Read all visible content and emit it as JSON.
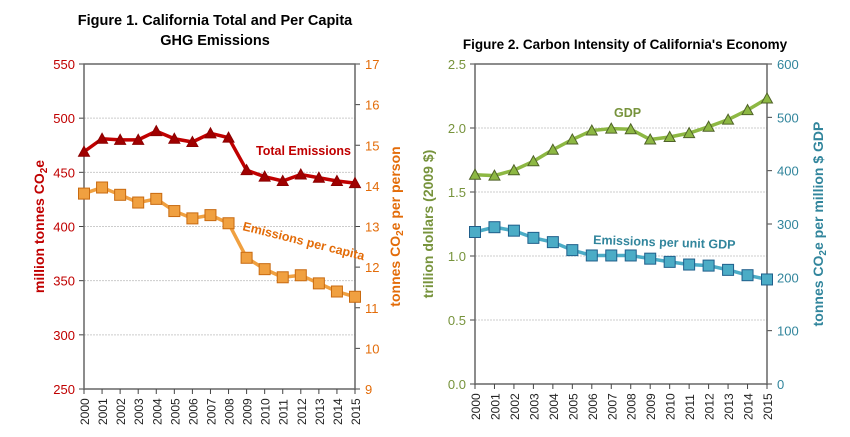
{
  "chart_data": [
    {
      "type": "line",
      "title": [
        "Figure 1. California Total and Per Capita",
        "GHG Emissions"
      ],
      "x": [
        2000,
        2001,
        2002,
        2003,
        2004,
        2005,
        2006,
        2007,
        2008,
        2009,
        2010,
        2011,
        2012,
        2013,
        2014,
        2015
      ],
      "ylabel": "million tonnes CO2e",
      "y2label": "tonnes CO2e per person",
      "ylim": [
        250,
        550
      ],
      "yticks": [
        250,
        300,
        350,
        400,
        450,
        500,
        550
      ],
      "y2lim": [
        9,
        17
      ],
      "y2ticks": [
        9,
        10,
        11,
        12,
        13,
        14,
        15,
        16,
        17
      ],
      "grid": true,
      "series": [
        {
          "name": "Total Emissions",
          "axis": "left",
          "color": "#c00000",
          "marker": "triangle",
          "values": [
            469,
            481,
            480,
            480,
            488,
            481,
            478,
            486,
            482,
            452,
            446,
            442,
            448,
            445,
            442,
            440
          ]
        },
        {
          "name": "Emissions per capita",
          "axis": "right",
          "color": "#f0a040",
          "marker": "square",
          "values": [
            13.81,
            13.96,
            13.78,
            13.59,
            13.68,
            13.38,
            13.2,
            13.28,
            13.08,
            12.23,
            11.95,
            11.75,
            11.8,
            11.6,
            11.4,
            11.27
          ]
        }
      ]
    },
    {
      "type": "line",
      "title": [
        "Figure 2. Carbon Intensity of California's Economy"
      ],
      "x": [
        2000,
        2001,
        2002,
        2003,
        2004,
        2005,
        2006,
        2007,
        2008,
        2009,
        2010,
        2011,
        2012,
        2013,
        2014,
        2015
      ],
      "ylabel": "trillion dollars (2009 $)",
      "y2label": "tonnes CO2e per million $ GDP",
      "ylim": [
        0,
        2.5
      ],
      "yticks": [
        "0.0",
        "0.5",
        "1.0",
        "1.5",
        "2.0",
        "2.5"
      ],
      "y2lim": [
        0,
        600
      ],
      "y2ticks": [
        0,
        100,
        200,
        300,
        400,
        500,
        600
      ],
      "grid": true,
      "series": [
        {
          "name": "GDP",
          "axis": "left",
          "color": "#8db843",
          "marker": "triangle",
          "values": [
            1.635,
            1.628,
            1.67,
            1.74,
            1.83,
            1.91,
            1.98,
            1.995,
            1.99,
            1.91,
            1.93,
            1.96,
            2.01,
            2.065,
            2.14,
            2.23
          ]
        },
        {
          "name": "Emissions per unit GDP",
          "axis": "right",
          "color": "#4bacc6",
          "marker": "square",
          "values": [
            285,
            294,
            287.5,
            274,
            266,
            251,
            241,
            241,
            241,
            235,
            229,
            224,
            222,
            214,
            204,
            196
          ]
        }
      ]
    }
  ]
}
